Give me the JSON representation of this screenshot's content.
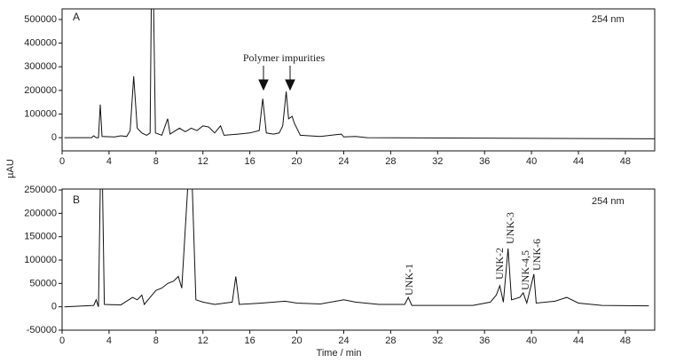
{
  "chart_data": [
    {
      "type": "line",
      "panel": "A",
      "wavelength": "254 nm",
      "annotation": "Polymer impurities",
      "ylabel": "µAU",
      "xlim": [
        0,
        50.5
      ],
      "xticks": [
        0,
        4,
        8,
        12,
        16,
        20,
        24,
        28,
        32,
        36,
        40,
        44,
        48
      ],
      "ylim": [
        -56000,
        545000
      ],
      "yticks": [
        0,
        100000,
        200000,
        300000,
        400000,
        500000
      ],
      "series": [
        {
          "name": "A",
          "color": "#111111",
          "x": [
            0.2,
            2.5,
            2.7,
            2.9,
            3.1,
            3.25,
            3.4,
            4.5,
            5,
            5.5,
            5.8,
            6.1,
            6.4,
            6.8,
            7.2,
            7.5,
            7.6,
            7.8,
            7.95,
            8.5,
            9.0,
            9.2,
            10,
            10.5,
            11,
            11.5,
            12,
            12.5,
            13,
            13.5,
            13.8,
            15,
            16,
            16.8,
            17.1,
            17.4,
            18,
            18.5,
            18.8,
            19.1,
            19.3,
            19.6,
            19.8,
            20.3,
            22,
            23.8,
            24,
            25,
            26,
            50.5
          ],
          "values": [
            0,
            0,
            8000,
            0,
            0,
            140000,
            5000,
            3000,
            8000,
            5000,
            30000,
            260000,
            40000,
            20000,
            10000,
            20000,
            545000,
            545000,
            20000,
            10000,
            80000,
            15000,
            40000,
            25000,
            40000,
            30000,
            50000,
            45000,
            20000,
            50000,
            10000,
            15000,
            20000,
            30000,
            165000,
            20000,
            15000,
            20000,
            50000,
            195000,
            80000,
            90000,
            60000,
            10000,
            5000,
            15000,
            3000,
            5000,
            0,
            -5000
          ]
        }
      ]
    },
    {
      "type": "line",
      "panel": "B",
      "wavelength": "254 nm",
      "xlabel": "Time / min",
      "annotations": [
        "UNK-1",
        "UNK-2",
        "UNK-3",
        "UNK-4,5",
        "UNK-6"
      ],
      "xlim": [
        0,
        50.5
      ],
      "xticks": [
        0,
        4,
        8,
        12,
        16,
        20,
        24,
        28,
        32,
        36,
        40,
        44,
        48
      ],
      "ylim": [
        -50000,
        252000
      ],
      "yticks": [
        -50000,
        0,
        50000,
        100000,
        150000,
        200000,
        250000
      ],
      "series": [
        {
          "name": "B",
          "color": "#111111",
          "x": [
            0.2,
            2.7,
            2.9,
            3.1,
            3.25,
            3.45,
            3.6,
            5,
            6,
            6.4,
            6.8,
            7,
            7.5,
            8,
            8.5,
            9,
            9.5,
            9.9,
            10.2,
            10.7,
            11.1,
            11.4,
            12,
            13,
            14.5,
            14.8,
            15.1,
            17,
            19,
            20,
            22,
            24,
            25,
            27,
            29.2,
            29.5,
            29.8,
            35,
            36.5,
            37,
            37.3,
            37.6,
            38,
            38.3,
            39,
            39.3,
            39.6,
            40.2,
            40.4,
            42,
            43,
            44,
            46,
            50
          ],
          "values": [
            0,
            3000,
            15000,
            0,
            252000,
            252000,
            5000,
            4000,
            20000,
            15000,
            25000,
            5000,
            20000,
            35000,
            40000,
            50000,
            55000,
            65000,
            40000,
            252000,
            252000,
            15000,
            10000,
            5000,
            10000,
            65000,
            5000,
            8000,
            12000,
            8000,
            6000,
            15000,
            10000,
            5000,
            5000,
            20000,
            3000,
            3000,
            10000,
            25000,
            45000,
            10000,
            125000,
            15000,
            20000,
            30000,
            8000,
            70000,
            8000,
            12000,
            20000,
            8000,
            3000,
            2000
          ]
        }
      ]
    }
  ]
}
